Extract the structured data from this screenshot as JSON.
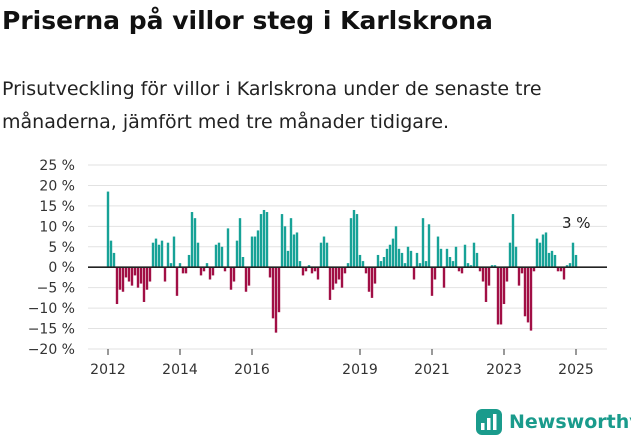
{
  "title": "Priserna på villor steg i Karlskrona",
  "subtitle": "Prisutveckling för villor i Karlskrona under de senaste tre månaderna, jämfört med tre månader tidigare.",
  "brand": "Newsworthy",
  "colors": {
    "positive": "#17a297",
    "negative": "#a10f45",
    "grid": "#e2e2e2",
    "zero": "#222222",
    "brand": "#1a9b8c"
  },
  "chart_data": {
    "type": "bar",
    "x_start": "2012-01",
    "frequency": "monthly",
    "ylim": [
      -20,
      25
    ],
    "yticks": [
      -20,
      -15,
      -10,
      -5,
      0,
      5,
      10,
      15,
      20,
      25
    ],
    "ytick_labels": [
      "−20 %",
      "−15 %",
      "−10 %",
      "−5 %",
      "0 %",
      "5 %",
      "10 %",
      "15 %",
      "20 %",
      "25 %"
    ],
    "xtick_labels": [
      "2012",
      "2014",
      "2016",
      "2019",
      "2021",
      "2023",
      "2025"
    ],
    "xtick_months": [
      0,
      24,
      48,
      84,
      108,
      132,
      156
    ],
    "annotation": "3 %",
    "values": [
      18.5,
      6.5,
      3.5,
      -9,
      -5.5,
      -6,
      -2.5,
      -3.5,
      -4.5,
      -2,
      -5,
      -4,
      -8.5,
      -5.5,
      -3.5,
      6,
      7,
      5.5,
      6.5,
      -3.5,
      6,
      1,
      7.5,
      -7,
      1,
      -1.5,
      -1.5,
      3,
      13.5,
      12,
      6,
      -2,
      -1,
      1,
      -3,
      -2,
      5.5,
      6,
      5,
      -1,
      9.5,
      -5.5,
      -3.5,
      6.5,
      12,
      2.5,
      -6,
      -4.5,
      7.5,
      7.5,
      9,
      13,
      14,
      13.5,
      -2.5,
      -12.5,
      -16,
      -11,
      13,
      10,
      4,
      12,
      8,
      8.5,
      1.5,
      -2,
      -1,
      0.5,
      -1.5,
      -1,
      -3,
      6,
      7.5,
      6,
      -8,
      -5.5,
      -4,
      -3,
      -5,
      -1.5,
      1,
      12,
      14,
      13,
      3,
      1.5,
      -1.5,
      -6,
      -7.5,
      -4,
      3,
      1.5,
      2.5,
      4.5,
      5.5,
      7,
      10,
      4.5,
      3.5,
      1,
      5,
      4,
      -3,
      3.5,
      1,
      12,
      1.5,
      10.5,
      -7,
      -3,
      7.5,
      4.5,
      -5,
      4.5,
      2.5,
      1.5,
      5,
      -1,
      -1.5,
      5.5,
      1,
      0.5,
      6,
      3.5,
      -1,
      -3.5,
      -8.5,
      -4.5,
      0.5,
      0.5,
      -14,
      -14,
      -9,
      -3.5,
      6,
      13,
      5,
      -4.5,
      -1.5,
      -12,
      -13.5,
      -15.5,
      -1,
      7,
      6,
      8,
      8.5,
      3.5,
      4,
      3,
      -1,
      -1,
      -3,
      0.5,
      1,
      6,
      3
    ]
  }
}
